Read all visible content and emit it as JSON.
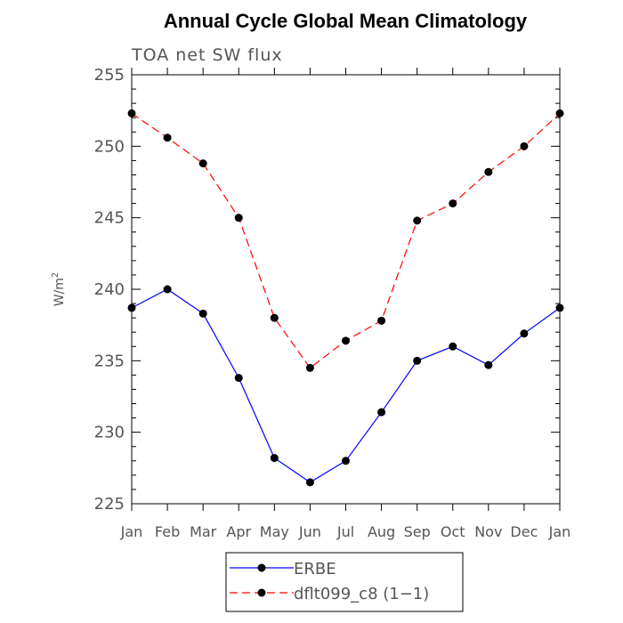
{
  "chart_data": {
    "type": "line",
    "title": "Annual Cycle Global Mean Climatology",
    "subtitle": "TOA net SW flux",
    "xlabel": "",
    "ylabel": "W/m",
    "ylabel_superscript": "2",
    "categories": [
      "Jan",
      "Feb",
      "Mar",
      "Apr",
      "May",
      "Jun",
      "Jul",
      "Aug",
      "Sep",
      "Oct",
      "Nov",
      "Dec",
      "Jan"
    ],
    "ylim": [
      225,
      255
    ],
    "yticks": [
      225,
      230,
      235,
      240,
      245,
      250,
      255
    ],
    "grid": false,
    "legend_position": "bottom-center",
    "series": [
      {
        "name": "ERBE",
        "color": "#0000ff",
        "line_style": "solid",
        "marker": "circle",
        "values": [
          238.7,
          240.0,
          238.3,
          233.8,
          228.2,
          226.5,
          228.0,
          231.4,
          235.0,
          236.0,
          234.7,
          236.9,
          238.7
        ]
      },
      {
        "name": "dflt099_c8 (1−1)",
        "color": "#ff0000",
        "line_style": "dashed",
        "marker": "circle",
        "values": [
          252.3,
          250.6,
          248.8,
          245.0,
          238.0,
          234.5,
          236.4,
          237.8,
          244.8,
          246.0,
          248.2,
          250.0,
          252.3
        ]
      }
    ]
  }
}
